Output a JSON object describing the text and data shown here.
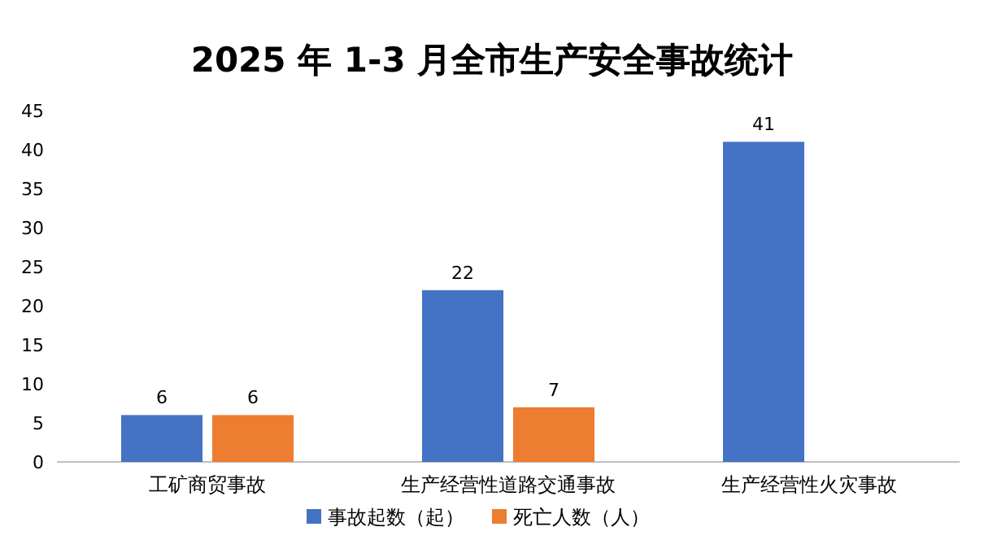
{
  "chart_data": {
    "type": "bar",
    "title": "2025 年 1-3 月全市生产安全事故统计",
    "categories": [
      "工矿商贸事故",
      "生产经营性道路交通事故",
      "生产经营性火灾事故"
    ],
    "series": [
      {
        "name": "事故起数（起）",
        "color": "#4472c4",
        "values": [
          6,
          22,
          41
        ]
      },
      {
        "name": "死亡人数（人）",
        "color": "#ed7d31",
        "values": [
          6,
          7,
          null
        ]
      }
    ],
    "ylim": [
      0,
      45
    ],
    "yticks": [
      0,
      5,
      10,
      15,
      20,
      25,
      30,
      35,
      40,
      45
    ],
    "data_labels": true,
    "legend": "bottom",
    "grid": false
  }
}
